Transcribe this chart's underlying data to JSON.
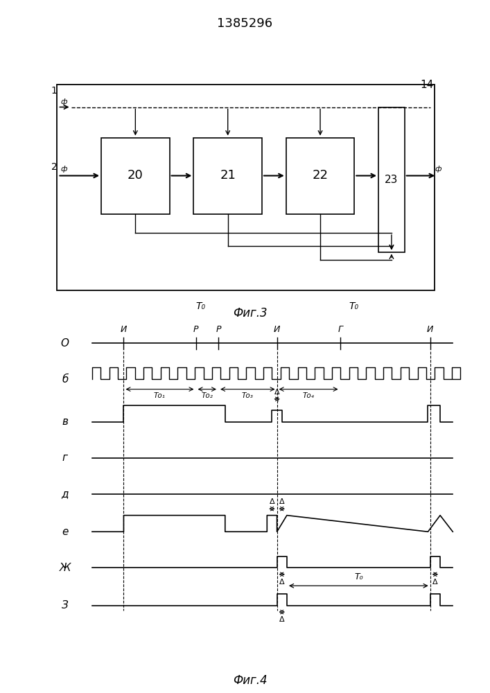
{
  "title": "1385296",
  "fig3_label": "Фиг.3",
  "fig4_label": "Фиг.4",
  "background_color": "#ffffff",
  "line_color": "#000000",
  "box_labels_3": [
    "20",
    "21",
    "22"
  ],
  "label_14": "14",
  "label_23": "23",
  "row_labels": [
    "О",
    "б",
    "в",
    "г",
    "д",
    "е",
    "Ж",
    "З"
  ],
  "marker_labels": [
    "И",
    "Р",
    "Р",
    "И",
    "Г",
    "И"
  ]
}
